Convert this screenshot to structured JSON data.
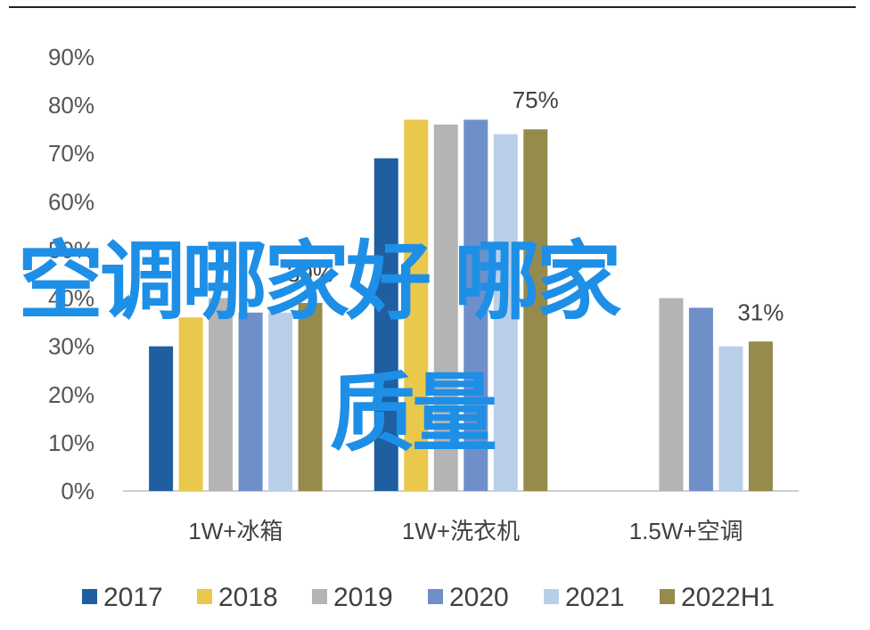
{
  "chart_data": {
    "type": "bar",
    "categories": [
      "1W+冰箱",
      "1W+洗衣机",
      "1.5W+空调"
    ],
    "series": [
      {
        "name": "2017",
        "color": "#1f5fa0",
        "values": [
          30,
          69,
          null
        ]
      },
      {
        "name": "2018",
        "color": "#eac84c",
        "values": [
          36,
          77,
          null
        ]
      },
      {
        "name": "2019",
        "color": "#b4b4b4",
        "values": [
          40,
          76,
          40
        ]
      },
      {
        "name": "2020",
        "color": "#6f8fc9",
        "values": [
          37,
          77,
          38
        ]
      },
      {
        "name": "2021",
        "color": "#b9cfe9",
        "values": [
          37,
          74,
          30
        ]
      },
      {
        "name": "2022H1",
        "color": "#958b4d",
        "values": [
          39,
          75,
          31
        ]
      }
    ],
    "data_labels": [
      {
        "category": 0,
        "series": 5,
        "text": "39%"
      },
      {
        "category": 1,
        "series": 5,
        "text": "75%"
      },
      {
        "category": 2,
        "series": 5,
        "text": "31%"
      }
    ],
    "ylim": [
      0,
      90
    ],
    "yticks": [
      "0%",
      "10%",
      "20%",
      "30%",
      "40%",
      "50%",
      "60%",
      "70%",
      "80%",
      "90%"
    ],
    "legend_position": "bottom",
    "grid": false
  },
  "overlay": {
    "line1": "空调哪家好 哪家",
    "line2": "质量"
  }
}
